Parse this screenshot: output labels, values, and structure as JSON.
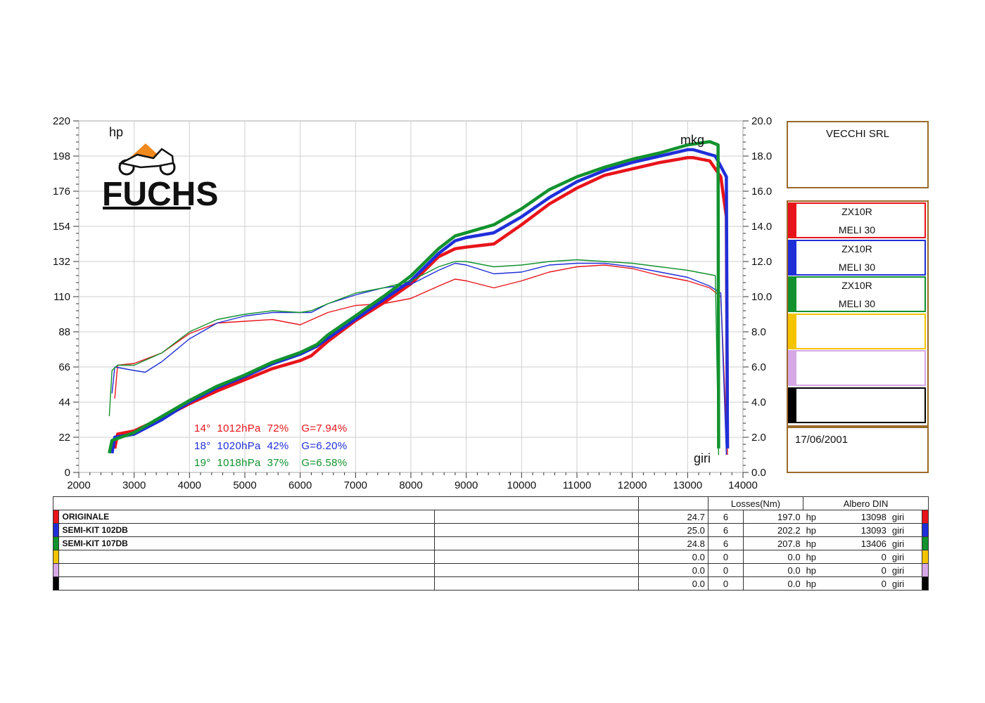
{
  "chart_data": {
    "type": "line",
    "x_label": "giri",
    "y_left_label": "hp",
    "y_right_label": "mkg",
    "x_range": [
      2000,
      14000
    ],
    "x_ticks": [
      "2000",
      "3000",
      "4000",
      "5000",
      "6000",
      "7000",
      "8000",
      "9000",
      "10000",
      "11000",
      "12000",
      "13000",
      "14000"
    ],
    "y_left_range": [
      0,
      220
    ],
    "y_left_ticks": [
      "0",
      "22",
      "44",
      "66",
      "88",
      "110",
      "132",
      "154",
      "176",
      "198",
      "220"
    ],
    "y_right_range": [
      0,
      20
    ],
    "y_right_ticks": [
      "0.0",
      "2.0",
      "4.0",
      "6.0",
      "8.0",
      "10.0",
      "12.0",
      "14.0",
      "16.0",
      "18.0",
      "20.0"
    ],
    "grid": true,
    "series": [
      {
        "name": "ORIGINALE",
        "color": "#e8141b",
        "power_hp": [
          [
            2650,
            15
          ],
          [
            2700,
            24
          ],
          [
            3000,
            26
          ],
          [
            3500,
            34
          ],
          [
            4000,
            43
          ],
          [
            4500,
            51
          ],
          [
            5000,
            58
          ],
          [
            5500,
            65
          ],
          [
            6000,
            70
          ],
          [
            6200,
            73
          ],
          [
            6500,
            82
          ],
          [
            7000,
            95
          ],
          [
            7500,
            106
          ],
          [
            8000,
            118
          ],
          [
            8500,
            135
          ],
          [
            8800,
            140
          ],
          [
            9000,
            141
          ],
          [
            9500,
            143
          ],
          [
            10000,
            155
          ],
          [
            10500,
            168
          ],
          [
            11000,
            178
          ],
          [
            11500,
            186
          ],
          [
            12000,
            190
          ],
          [
            12500,
            194
          ],
          [
            13000,
            197
          ],
          [
            13100,
            197
          ],
          [
            13400,
            195
          ],
          [
            13600,
            185
          ],
          [
            13700,
            160
          ],
          [
            13720,
            15
          ]
        ],
        "torque_mkg": [
          [
            2650,
            4.2
          ],
          [
            2700,
            6.1
          ],
          [
            3000,
            6.2
          ],
          [
            3500,
            6.8
          ],
          [
            4000,
            7.9
          ],
          [
            4500,
            8.5
          ],
          [
            5000,
            8.6
          ],
          [
            5500,
            8.7
          ],
          [
            6000,
            8.4
          ],
          [
            6500,
            9.1
          ],
          [
            7000,
            9.5
          ],
          [
            7500,
            9.6
          ],
          [
            8000,
            9.9
          ],
          [
            8500,
            10.6
          ],
          [
            8800,
            11.0
          ],
          [
            9000,
            10.9
          ],
          [
            9500,
            10.5
          ],
          [
            10000,
            10.9
          ],
          [
            10500,
            11.4
          ],
          [
            11000,
            11.7
          ],
          [
            11500,
            11.8
          ],
          [
            12000,
            11.6
          ],
          [
            12500,
            11.2
          ],
          [
            13000,
            10.9
          ],
          [
            13400,
            10.5
          ],
          [
            13600,
            10.0
          ],
          [
            13720,
            1.0
          ]
        ]
      },
      {
        "name": "SEMI-KIT 102DB",
        "color": "#1f2fd8",
        "power_hp": [
          [
            2600,
            12
          ],
          [
            2650,
            22
          ],
          [
            3000,
            24
          ],
          [
            3500,
            33
          ],
          [
            4000,
            44
          ],
          [
            4500,
            53
          ],
          [
            5000,
            60
          ],
          [
            5500,
            68
          ],
          [
            6000,
            74
          ],
          [
            6300,
            79
          ],
          [
            6500,
            84
          ],
          [
            7000,
            96
          ],
          [
            7500,
            108
          ],
          [
            8000,
            120
          ],
          [
            8500,
            137
          ],
          [
            8800,
            145
          ],
          [
            9000,
            147
          ],
          [
            9500,
            150
          ],
          [
            10000,
            160
          ],
          [
            10500,
            172
          ],
          [
            11000,
            182
          ],
          [
            11500,
            189
          ],
          [
            12000,
            194
          ],
          [
            12500,
            198
          ],
          [
            13000,
            202
          ],
          [
            13100,
            202
          ],
          [
            13500,
            198
          ],
          [
            13700,
            185
          ],
          [
            13720,
            15
          ]
        ],
        "torque_mkg": [
          [
            2600,
            4.5
          ],
          [
            2650,
            6.0
          ],
          [
            3000,
            5.8
          ],
          [
            3200,
            5.7
          ],
          [
            3500,
            6.3
          ],
          [
            4000,
            7.6
          ],
          [
            4500,
            8.5
          ],
          [
            5000,
            8.9
          ],
          [
            5500,
            9.1
          ],
          [
            6000,
            9.1
          ],
          [
            6200,
            9.1
          ],
          [
            6500,
            9.6
          ],
          [
            7000,
            10.1
          ],
          [
            7500,
            10.5
          ],
          [
            8000,
            10.7
          ],
          [
            8500,
            11.5
          ],
          [
            8800,
            11.9
          ],
          [
            9000,
            11.8
          ],
          [
            9500,
            11.3
          ],
          [
            10000,
            11.4
          ],
          [
            10500,
            11.8
          ],
          [
            11000,
            11.9
          ],
          [
            11500,
            11.9
          ],
          [
            12000,
            11.7
          ],
          [
            12500,
            11.4
          ],
          [
            13000,
            11.1
          ],
          [
            13400,
            10.6
          ],
          [
            13600,
            10.2
          ],
          [
            13700,
            1.0
          ]
        ]
      },
      {
        "name": "SEMI-KIT 107DB",
        "color": "#12922e",
        "power_hp": [
          [
            2550,
            12
          ],
          [
            2600,
            20
          ],
          [
            3000,
            25
          ],
          [
            3500,
            35
          ],
          [
            4000,
            45
          ],
          [
            4500,
            54
          ],
          [
            5000,
            61
          ],
          [
            5500,
            69
          ],
          [
            6000,
            75
          ],
          [
            6300,
            80
          ],
          [
            6500,
            86
          ],
          [
            7000,
            98
          ],
          [
            7500,
            110
          ],
          [
            8000,
            123
          ],
          [
            8500,
            140
          ],
          [
            8800,
            148
          ],
          [
            9000,
            150
          ],
          [
            9500,
            155
          ],
          [
            10000,
            165
          ],
          [
            10500,
            177
          ],
          [
            11000,
            185
          ],
          [
            11500,
            191
          ],
          [
            12000,
            196
          ],
          [
            12500,
            200
          ],
          [
            13000,
            205
          ],
          [
            13400,
            207
          ],
          [
            13550,
            205
          ],
          [
            13560,
            15
          ]
        ],
        "torque_mkg": [
          [
            2550,
            3.2
          ],
          [
            2600,
            5.8
          ],
          [
            2700,
            6.1
          ],
          [
            3000,
            6.1
          ],
          [
            3500,
            6.8
          ],
          [
            4000,
            8.0
          ],
          [
            4500,
            8.7
          ],
          [
            5000,
            9.0
          ],
          [
            5500,
            9.2
          ],
          [
            6000,
            9.1
          ],
          [
            6200,
            9.2
          ],
          [
            6500,
            9.6
          ],
          [
            7000,
            10.2
          ],
          [
            7500,
            10.5
          ],
          [
            8000,
            10.9
          ],
          [
            8500,
            11.7
          ],
          [
            8800,
            12.0
          ],
          [
            9000,
            12.0
          ],
          [
            9500,
            11.7
          ],
          [
            10000,
            11.8
          ],
          [
            10500,
            12.0
          ],
          [
            11000,
            12.1
          ],
          [
            11500,
            12.0
          ],
          [
            12000,
            11.9
          ],
          [
            12500,
            11.7
          ],
          [
            13000,
            11.5
          ],
          [
            13500,
            11.2
          ],
          [
            13560,
            1.0
          ]
        ]
      }
    ],
    "conditions": [
      {
        "text": "14°  1012hPa  72%    G=7.94%",
        "color": "#e8141b"
      },
      {
        "text": "18°  1020hPa  42%    G=6.20%",
        "color": "#1f2fd8"
      },
      {
        "text": "19°  1018hPa  37%    G=6.58%",
        "color": "#12922e"
      }
    ]
  },
  "logo_text": "FUCHS",
  "company": "VECCHI SRL",
  "date": "17/06/2001",
  "legend_slots": [
    {
      "line1": "ZX10R",
      "line2": "MELI 30",
      "color": "#e8141b"
    },
    {
      "line1": "ZX10R",
      "line2": "MELI 30",
      "color": "#1f2fd8"
    },
    {
      "line1": "ZX10R",
      "line2": "MELI 30",
      "color": "#12922e"
    },
    {
      "line1": "",
      "line2": "",
      "color": "#f5c400"
    },
    {
      "line1": "",
      "line2": "",
      "color": "#d6a8e6"
    },
    {
      "line1": "",
      "line2": "",
      "color": "#000000"
    }
  ],
  "table": {
    "losses_header": "Losses(Nm)",
    "albero_header": "Albero DIN",
    "rows": [
      {
        "color": "#e8141b",
        "name": "ORIGINALE",
        "loss": "24.7",
        "n": "6",
        "hp": "197.0",
        "hp_unit": "hp",
        "rpm": "13098",
        "rpm_unit": "giri"
      },
      {
        "color": "#1f2fd8",
        "name": "SEMI-KIT 102DB",
        "loss": "25.0",
        "n": "6",
        "hp": "202.2",
        "hp_unit": "hp",
        "rpm": "13093",
        "rpm_unit": "giri"
      },
      {
        "color": "#12922e",
        "name": "SEMI-KIT 107DB",
        "loss": "24.8",
        "n": "6",
        "hp": "207.8",
        "hp_unit": "hp",
        "rpm": "13406",
        "rpm_unit": "giri"
      },
      {
        "color": "#f5c400",
        "name": "",
        "loss": "0.0",
        "n": "0",
        "hp": "0.0",
        "hp_unit": "hp",
        "rpm": "0",
        "rpm_unit": "giri"
      },
      {
        "color": "#d6a8e6",
        "name": "",
        "loss": "0.0",
        "n": "0",
        "hp": "0.0",
        "hp_unit": "hp",
        "rpm": "0",
        "rpm_unit": "giri"
      },
      {
        "color": "#000000",
        "name": "",
        "loss": "0.0",
        "n": "0",
        "hp": "0.0",
        "hp_unit": "hp",
        "rpm": "0",
        "rpm_unit": "giri"
      }
    ]
  }
}
